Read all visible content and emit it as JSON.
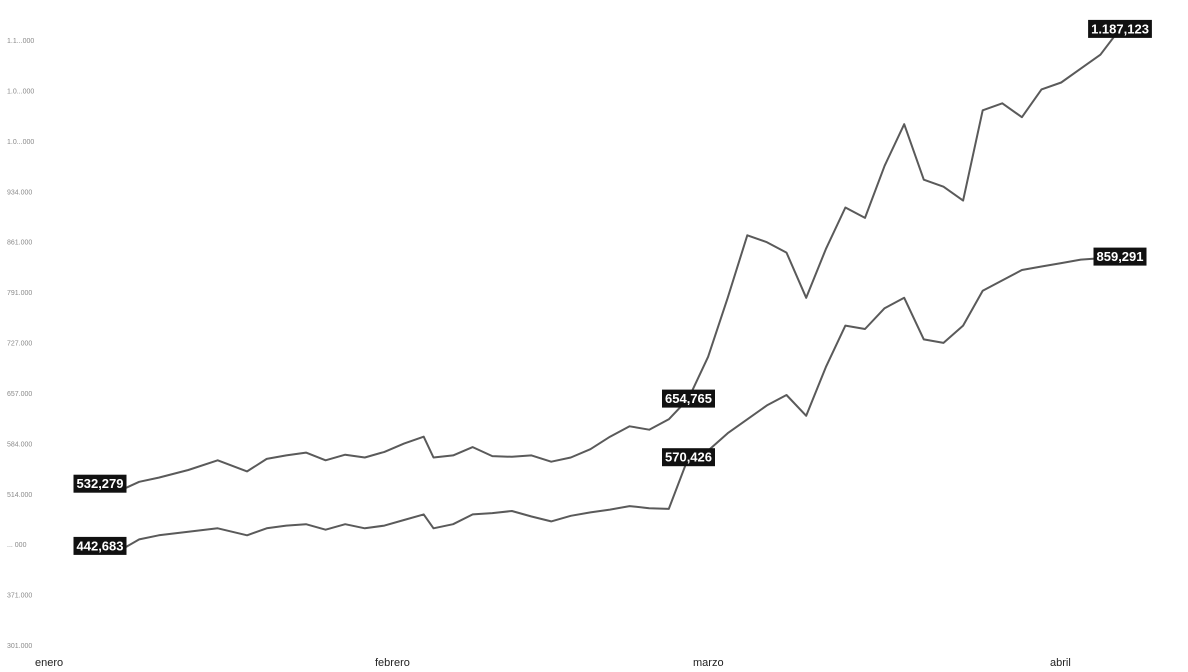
{
  "chart_data": {
    "type": "line",
    "title": "",
    "xlabel": "",
    "ylabel": "",
    "grid": false,
    "legend": "none",
    "line_color": "#5a5a5a",
    "label_bg_color": "#111111",
    "label_text_color": "#ffffff",
    "x_tick_labels": [
      "enero",
      "febrero",
      "marzo",
      "abril"
    ],
    "x_tick_positions": [
      0,
      31,
      59,
      90
    ],
    "x_range": [
      0,
      104
    ],
    "y_scale": "categorical-faded",
    "y_tick_labels": [
      "1.1...000",
      "1.0...000",
      "1.0...000",
      "934.000",
      "861.000",
      "791.000",
      "727.000",
      "657.000",
      "584.000",
      "514.000",
      "... 000",
      "371.000",
      "301.000"
    ],
    "y_range": [
      300000,
      1200000
    ],
    "series": [
      {
        "x": [
          0,
          2,
          4,
          6,
          9,
          12,
          15,
          17,
          19,
          21,
          23,
          25,
          27,
          29,
          31,
          33,
          34,
          36,
          38,
          40,
          42,
          44,
          46,
          48,
          50,
          52,
          54,
          56,
          58,
          60,
          62,
          64,
          66,
          68,
          70,
          72,
          74,
          76,
          78,
          80,
          82,
          84,
          86,
          88,
          90,
          92,
          94,
          96,
          98,
          100,
          102,
          104
        ],
        "values": [
          532279,
          522000,
          535000,
          541000,
          552000,
          566000,
          550000,
          568000,
          573000,
          577000,
          566000,
          574000,
          570000,
          578000,
          590000,
          600000,
          570000,
          573000,
          585000,
          572000,
          571000,
          573000,
          564000,
          570000,
          582000,
          600000,
          615000,
          610000,
          625000,
          654765,
          715000,
          800000,
          890000,
          880000,
          865000,
          800000,
          870000,
          930000,
          915000,
          990000,
          1050000,
          970000,
          960000,
          940000,
          1070000,
          1080000,
          1060000,
          1100000,
          1110000,
          1130000,
          1150000,
          1187123
        ]
      },
      {
        "x": [
          0,
          2,
          4,
          6,
          9,
          12,
          15,
          17,
          19,
          21,
          23,
          25,
          27,
          29,
          31,
          33,
          34,
          36,
          38,
          40,
          42,
          44,
          46,
          48,
          50,
          52,
          54,
          56,
          58,
          60,
          62,
          64,
          66,
          68,
          70,
          72,
          74,
          76,
          78,
          80,
          82,
          84,
          86,
          88,
          90,
          92,
          94,
          96,
          98,
          100,
          102,
          104
        ],
        "values": [
          442683,
          436000,
          452000,
          458000,
          463000,
          468000,
          458000,
          468000,
          472000,
          474000,
          466000,
          474000,
          468000,
          472000,
          480000,
          488000,
          468000,
          474000,
          488000,
          490000,
          493000,
          485000,
          478000,
          486000,
          491000,
          495000,
          500000,
          497000,
          496000,
          570426,
          580000,
          605000,
          625000,
          645000,
          660000,
          630000,
          700000,
          760000,
          755000,
          785000,
          800000,
          740000,
          735000,
          760000,
          810000,
          825000,
          840000,
          845000,
          850000,
          855000,
          857000,
          859291
        ]
      }
    ],
    "value_labels": [
      {
        "series": 0,
        "point_index": 0,
        "text": "532,279"
      },
      {
        "series": 1,
        "point_index": 0,
        "text": "442,683"
      },
      {
        "series": 0,
        "point_index": 29,
        "text": "654,765"
      },
      {
        "series": 1,
        "point_index": 29,
        "text": "570,426"
      },
      {
        "series": 0,
        "point_index": 51,
        "text": "1.187,123"
      },
      {
        "series": 1,
        "point_index": 51,
        "text": "859,291"
      }
    ]
  }
}
